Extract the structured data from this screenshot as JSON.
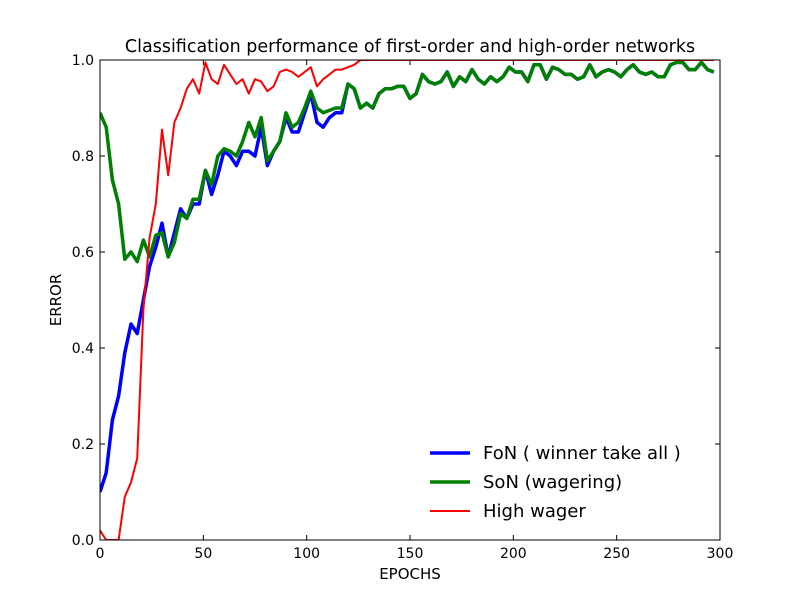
{
  "chart_data": {
    "type": "line",
    "title": "Classification performance of first-order and high-order networks",
    "xlabel": "EPOCHS",
    "ylabel": "ERROR",
    "xlim": [
      0,
      300
    ],
    "ylim": [
      0.0,
      1.0
    ],
    "xticks": [
      "0",
      "50",
      "100",
      "150",
      "200",
      "250",
      "300"
    ],
    "yticks": [
      "0.0",
      "0.2",
      "0.4",
      "0.6",
      "0.8",
      "1.0"
    ],
    "grid": false,
    "legend_position": "lower-right",
    "series": [
      {
        "name": "FoN ( winner take all )",
        "color": "#0000ff",
        "line_width": "thick",
        "x": [
          0,
          3,
          6,
          9,
          12,
          15,
          18,
          21,
          24,
          27,
          30,
          33,
          36,
          39,
          42,
          45,
          48,
          51,
          54,
          57,
          60,
          63,
          66,
          69,
          72,
          75,
          78,
          81,
          84,
          87,
          90,
          93,
          96,
          99,
          102,
          105,
          108,
          111,
          114,
          117,
          120,
          123,
          126,
          129,
          132,
          135,
          138,
          141,
          144,
          147,
          150,
          153,
          156,
          159,
          162,
          165,
          168,
          171,
          174,
          177,
          180,
          183,
          186,
          189,
          192,
          195,
          198,
          201,
          204,
          207,
          210,
          213,
          216,
          219,
          222,
          225,
          228,
          231,
          234,
          237,
          240,
          243,
          246,
          249,
          252,
          255,
          258,
          261,
          264,
          267,
          270,
          273,
          276,
          279,
          282,
          285,
          288,
          291,
          294,
          297
        ],
        "y": [
          0.1,
          0.14,
          0.25,
          0.3,
          0.39,
          0.45,
          0.43,
          0.5,
          0.57,
          0.61,
          0.66,
          0.59,
          0.64,
          0.69,
          0.67,
          0.7,
          0.7,
          0.77,
          0.72,
          0.76,
          0.81,
          0.8,
          0.78,
          0.81,
          0.81,
          0.8,
          0.86,
          0.78,
          0.81,
          0.83,
          0.88,
          0.85,
          0.85,
          0.89,
          0.93,
          0.87,
          0.86,
          0.88,
          0.89,
          0.89,
          0.95,
          0.94,
          0.9,
          0.91,
          0.9,
          0.93,
          0.94,
          0.94,
          0.945,
          0.945,
          0.92,
          0.93,
          0.97,
          0.955,
          0.95,
          0.955,
          0.975,
          0.945,
          0.965,
          0.955,
          0.98,
          0.96,
          0.95,
          0.965,
          0.955,
          0.965,
          0.985,
          0.975,
          0.975,
          0.955,
          0.99,
          0.99,
          0.96,
          0.985,
          0.98,
          0.97,
          0.97,
          0.96,
          0.965,
          0.99,
          0.965,
          0.975,
          0.98,
          0.975,
          0.965,
          0.98,
          0.99,
          0.975,
          0.97,
          0.975,
          0.965,
          0.965,
          0.99,
          0.995,
          0.995,
          0.98,
          0.98,
          0.995,
          0.98,
          0.975
        ]
      },
      {
        "name": "SoN (wagering)",
        "color": "#008000",
        "line_width": "thick",
        "x": [
          0,
          3,
          6,
          9,
          12,
          15,
          18,
          21,
          24,
          27,
          30,
          33,
          36,
          39,
          42,
          45,
          48,
          51,
          54,
          57,
          60,
          63,
          66,
          69,
          72,
          75,
          78,
          81,
          84,
          87,
          90,
          93,
          96,
          99,
          102,
          105,
          108,
          111,
          114,
          117,
          120,
          123,
          126,
          129,
          132,
          135,
          138,
          141,
          144,
          147,
          150,
          153,
          156,
          159,
          162,
          165,
          168,
          171,
          174,
          177,
          180,
          183,
          186,
          189,
          192,
          195,
          198,
          201,
          204,
          207,
          210,
          213,
          216,
          219,
          222,
          225,
          228,
          231,
          234,
          237,
          240,
          243,
          246,
          249,
          252,
          255,
          258,
          261,
          264,
          267,
          270,
          273,
          276,
          279,
          282,
          285,
          288,
          291,
          294,
          297
        ],
        "y": [
          0.89,
          0.86,
          0.75,
          0.7,
          0.585,
          0.6,
          0.58,
          0.625,
          0.59,
          0.635,
          0.64,
          0.59,
          0.62,
          0.68,
          0.67,
          0.71,
          0.71,
          0.77,
          0.74,
          0.8,
          0.815,
          0.81,
          0.8,
          0.83,
          0.87,
          0.84,
          0.88,
          0.79,
          0.81,
          0.83,
          0.89,
          0.86,
          0.87,
          0.9,
          0.935,
          0.9,
          0.89,
          0.895,
          0.9,
          0.9,
          0.95,
          0.94,
          0.9,
          0.91,
          0.9,
          0.93,
          0.94,
          0.94,
          0.945,
          0.945,
          0.92,
          0.93,
          0.97,
          0.955,
          0.95,
          0.955,
          0.975,
          0.945,
          0.965,
          0.955,
          0.98,
          0.96,
          0.95,
          0.965,
          0.955,
          0.965,
          0.985,
          0.975,
          0.975,
          0.955,
          0.99,
          0.99,
          0.96,
          0.985,
          0.98,
          0.97,
          0.97,
          0.96,
          0.965,
          0.99,
          0.965,
          0.975,
          0.98,
          0.975,
          0.965,
          0.98,
          0.99,
          0.975,
          0.97,
          0.975,
          0.965,
          0.965,
          0.99,
          0.995,
          0.995,
          0.98,
          0.98,
          0.995,
          0.98,
          0.975
        ]
      },
      {
        "name": "High wager",
        "color": "#ff0000",
        "line_width": "thin",
        "x": [
          0,
          3,
          6,
          9,
          12,
          15,
          18,
          21,
          24,
          27,
          30,
          33,
          36,
          39,
          42,
          45,
          48,
          51,
          54,
          57,
          60,
          63,
          66,
          69,
          72,
          75,
          78,
          81,
          84,
          87,
          90,
          93,
          96,
          99,
          102,
          105,
          108,
          111,
          114,
          117,
          120,
          123,
          126,
          129,
          132,
          135,
          138,
          141,
          144,
          147,
          150,
          160,
          170,
          180,
          190,
          200,
          210,
          220,
          230,
          240,
          250,
          260,
          270,
          280,
          290,
          297
        ],
        "y": [
          0.02,
          0.0,
          0.0,
          0.0,
          0.09,
          0.12,
          0.17,
          0.48,
          0.63,
          0.7,
          0.855,
          0.76,
          0.87,
          0.9,
          0.94,
          0.96,
          0.93,
          0.995,
          0.96,
          0.95,
          0.99,
          0.97,
          0.95,
          0.96,
          0.93,
          0.96,
          0.955,
          0.935,
          0.945,
          0.975,
          0.98,
          0.975,
          0.965,
          0.975,
          0.985,
          0.945,
          0.96,
          0.97,
          0.98,
          0.98,
          0.985,
          0.99,
          1.0,
          1.0,
          1.0,
          1.0,
          1.0,
          1.0,
          1.0,
          1.0,
          1.0,
          1.0,
          1.0,
          1.0,
          1.0,
          1.0,
          1.0,
          1.0,
          1.0,
          1.0,
          1.0,
          1.0,
          1.0,
          1.0,
          1.0,
          1.0
        ]
      }
    ]
  }
}
